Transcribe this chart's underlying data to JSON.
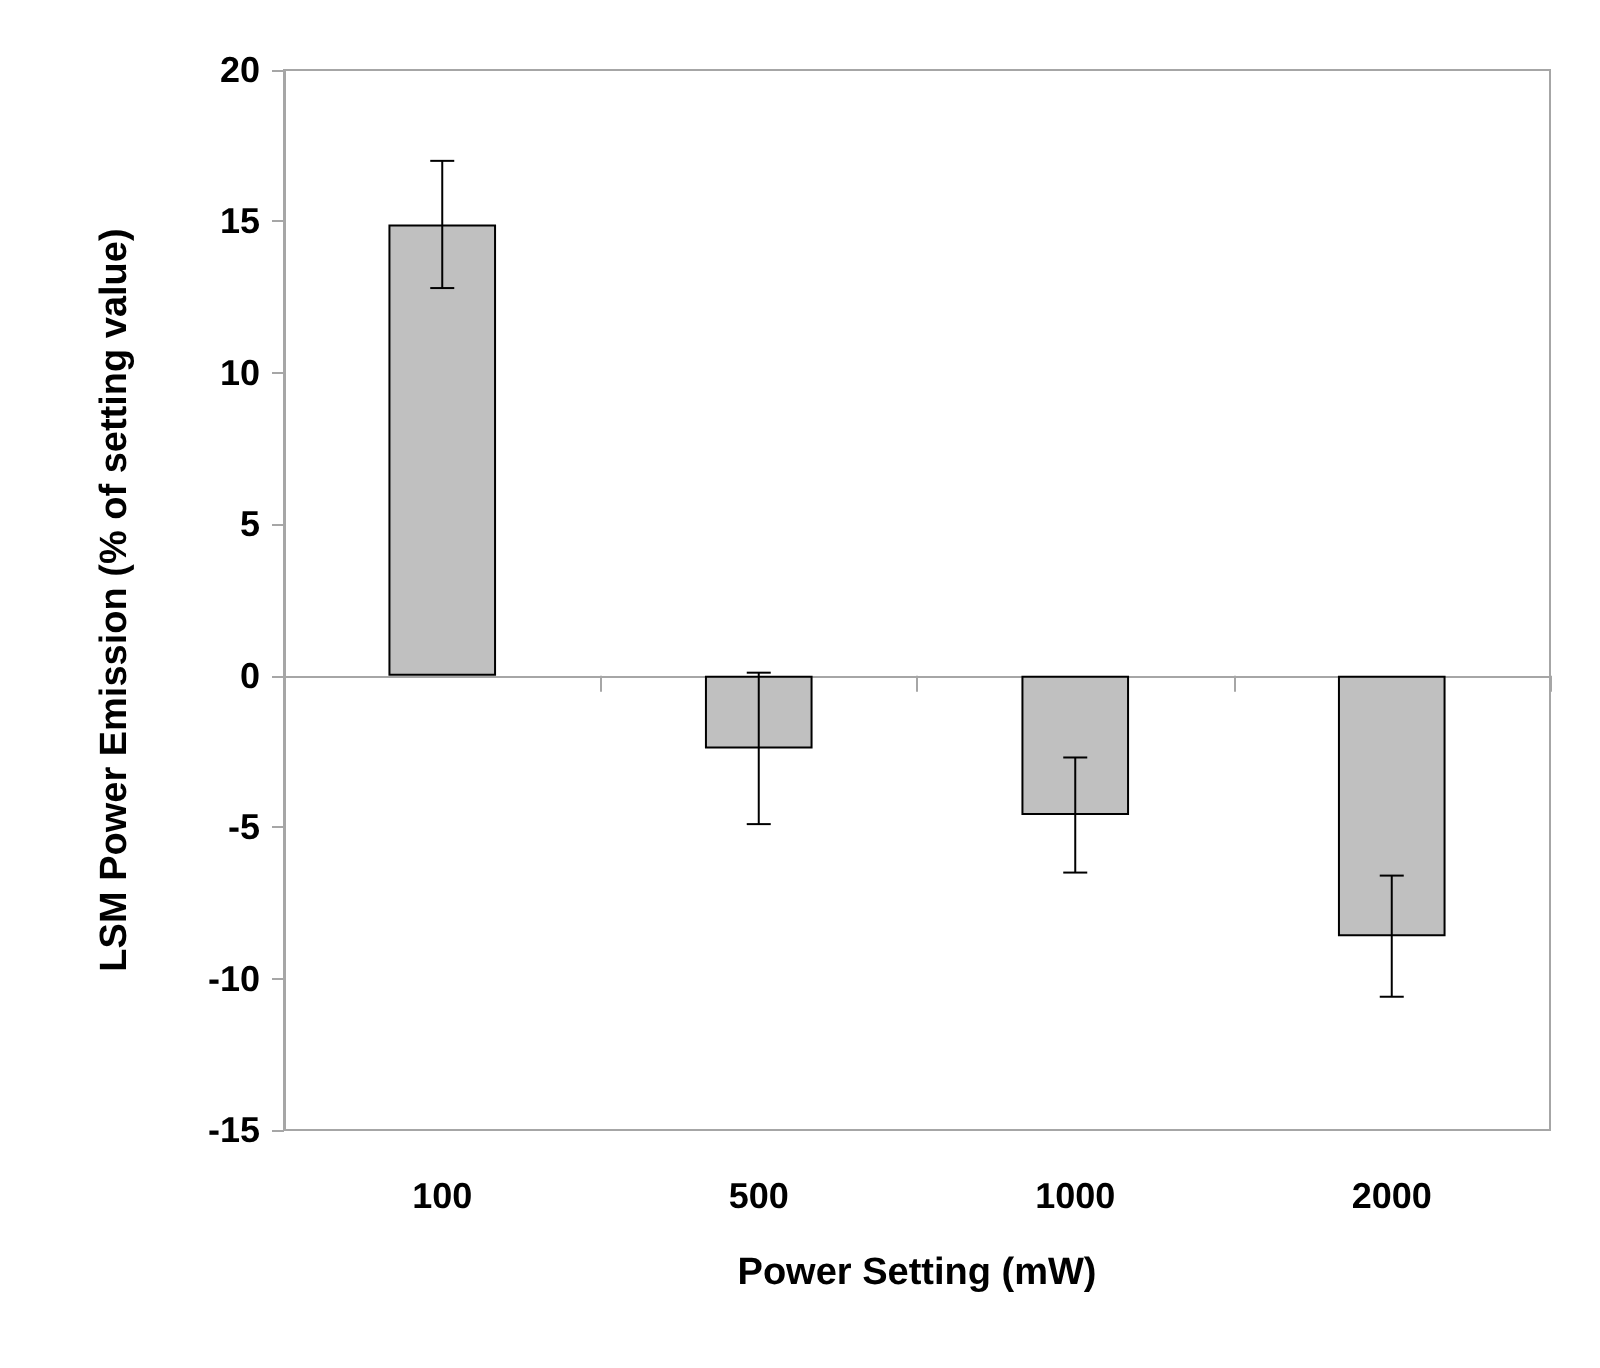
{
  "chart_data": {
    "type": "bar",
    "xlabel": "Power Setting (mW)",
    "ylabel": "LSM Power Emission (% of setting value)",
    "categories": [
      "100",
      "500",
      "1000",
      "2000"
    ],
    "values": [
      14.9,
      -2.4,
      -4.6,
      -8.6
    ],
    "errors": [
      2.1,
      2.5,
      1.9,
      2.0
    ],
    "color": "#c0c0c0",
    "ylim": [
      -15,
      20
    ],
    "yticks": [
      -15,
      -10,
      -5,
      0,
      5,
      10,
      15,
      20
    ]
  }
}
